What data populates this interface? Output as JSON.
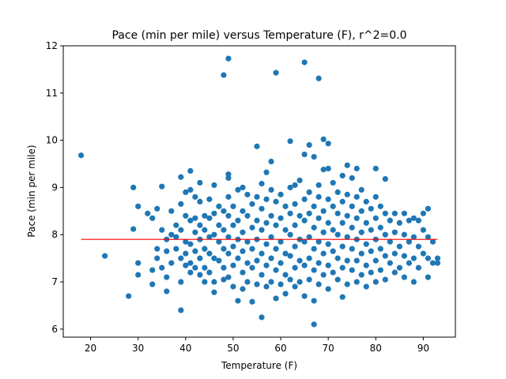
{
  "chart_data": {
    "type": "scatter",
    "title": "Pace (min per mile) versus Temperature (F), r^2=0.0",
    "xlabel": "Temperature (F)",
    "ylabel": "Pace (min per mile)",
    "xlim": [
      14.25,
      96.75
    ],
    "ylim": [
      5.83,
      12.0
    ],
    "x_ticks": [
      20,
      30,
      40,
      50,
      60,
      70,
      80,
      90
    ],
    "y_ticks": [
      6,
      7,
      8,
      9,
      10,
      11,
      12
    ],
    "grid": false,
    "point_color": "#1f77b4",
    "fit_line": {
      "color": "#ff0000",
      "x": [
        18,
        93
      ],
      "y": [
        7.9,
        7.9
      ]
    },
    "points": [
      [
        18,
        9.68
      ],
      [
        23,
        7.55
      ],
      [
        28,
        6.7
      ],
      [
        29,
        8.12
      ],
      [
        29,
        9.0
      ],
      [
        30,
        8.6
      ],
      [
        30,
        7.4
      ],
      [
        30,
        7.15
      ],
      [
        32,
        8.45
      ],
      [
        33,
        8.35
      ],
      [
        33,
        7.25
      ],
      [
        33,
        6.95
      ],
      [
        34,
        8.55
      ],
      [
        34,
        7.7
      ],
      [
        34,
        7.5
      ],
      [
        35,
        9.02
      ],
      [
        35,
        8.1
      ],
      [
        35,
        7.3
      ],
      [
        36,
        7.9
      ],
      [
        36,
        7.65
      ],
      [
        36,
        7.1
      ],
      [
        36,
        6.8
      ],
      [
        37,
        8.5
      ],
      [
        37,
        8.0
      ],
      [
        37,
        7.4
      ],
      [
        38,
        8.2
      ],
      [
        38,
        7.95
      ],
      [
        38,
        7.7
      ],
      [
        39,
        9.22
      ],
      [
        39,
        8.65
      ],
      [
        39,
        8.1
      ],
      [
        39,
        7.5
      ],
      [
        39,
        7.0
      ],
      [
        39,
        6.4
      ],
      [
        40,
        8.9
      ],
      [
        40,
        8.4
      ],
      [
        40,
        7.85
      ],
      [
        40,
        7.6
      ],
      [
        40,
        7.35
      ],
      [
        41,
        9.35
      ],
      [
        41,
        8.95
      ],
      [
        41,
        8.3
      ],
      [
        41,
        7.8
      ],
      [
        41,
        7.4
      ],
      [
        41,
        7.2
      ],
      [
        42,
        8.8
      ],
      [
        42,
        8.35
      ],
      [
        42,
        8.05
      ],
      [
        42,
        7.65
      ],
      [
        42,
        7.3
      ],
      [
        43,
        9.1
      ],
      [
        43,
        8.7
      ],
      [
        43,
        8.2
      ],
      [
        43,
        7.9
      ],
      [
        43,
        7.5
      ],
      [
        43,
        7.15
      ],
      [
        44,
        8.4
      ],
      [
        44,
        8.1
      ],
      [
        44,
        7.7
      ],
      [
        44,
        7.3
      ],
      [
        44,
        7.0
      ],
      [
        45,
        8.75
      ],
      [
        45,
        8.35
      ],
      [
        45,
        7.95
      ],
      [
        45,
        7.6
      ],
      [
        45,
        7.2
      ],
      [
        46,
        9.05
      ],
      [
        46,
        8.45
      ],
      [
        46,
        8.0
      ],
      [
        46,
        7.5
      ],
      [
        46,
        7.0
      ],
      [
        46,
        6.78
      ],
      [
        47,
        8.6
      ],
      [
        47,
        8.2
      ],
      [
        47,
        7.85
      ],
      [
        47,
        7.45
      ],
      [
        48,
        11.38
      ],
      [
        48,
        8.5
      ],
      [
        48,
        8.1
      ],
      [
        48,
        7.7
      ],
      [
        48,
        7.3
      ],
      [
        48,
        7.05
      ],
      [
        49,
        11.73
      ],
      [
        49,
        9.28
      ],
      [
        49,
        9.2
      ],
      [
        49,
        8.8
      ],
      [
        49,
        8.4
      ],
      [
        49,
        7.95
      ],
      [
        49,
        7.6
      ],
      [
        49,
        7.1
      ],
      [
        50,
        8.6
      ],
      [
        50,
        8.2
      ],
      [
        50,
        7.75
      ],
      [
        50,
        7.35
      ],
      [
        50,
        6.9
      ],
      [
        51,
        8.95
      ],
      [
        51,
        8.3
      ],
      [
        51,
        7.9
      ],
      [
        51,
        7.5
      ],
      [
        51,
        6.6
      ],
      [
        52,
        9.0
      ],
      [
        52,
        8.5
      ],
      [
        52,
        8.05
      ],
      [
        52,
        7.65
      ],
      [
        52,
        7.2
      ],
      [
        52,
        6.85
      ],
      [
        53,
        8.85
      ],
      [
        53,
        8.4
      ],
      [
        53,
        7.85
      ],
      [
        53,
        7.4
      ],
      [
        53,
        7.0
      ],
      [
        54,
        8.65
      ],
      [
        54,
        8.15
      ],
      [
        54,
        7.7
      ],
      [
        54,
        7.3
      ],
      [
        54,
        6.58
      ],
      [
        55,
        9.87
      ],
      [
        55,
        8.8
      ],
      [
        55,
        8.3
      ],
      [
        55,
        7.9
      ],
      [
        55,
        7.45
      ],
      [
        55,
        6.95
      ],
      [
        56,
        9.08
      ],
      [
        56,
        8.55
      ],
      [
        56,
        8.1
      ],
      [
        56,
        7.6
      ],
      [
        56,
        7.15
      ],
      [
        56,
        6.25
      ],
      [
        57,
        9.32
      ],
      [
        57,
        8.75
      ],
      [
        57,
        8.25
      ],
      [
        57,
        7.8
      ],
      [
        57,
        7.35
      ],
      [
        57,
        6.9
      ],
      [
        58,
        9.55
      ],
      [
        58,
        8.95
      ],
      [
        58,
        8.4
      ],
      [
        58,
        7.95
      ],
      [
        58,
        7.5
      ],
      [
        58,
        7.0
      ],
      [
        59,
        11.43
      ],
      [
        59,
        8.7
      ],
      [
        59,
        8.2
      ],
      [
        59,
        7.7
      ],
      [
        59,
        7.25
      ],
      [
        59,
        6.65
      ],
      [
        60,
        8.85
      ],
      [
        60,
        8.35
      ],
      [
        60,
        7.85
      ],
      [
        60,
        7.4
      ],
      [
        60,
        6.95
      ],
      [
        61,
        8.6
      ],
      [
        61,
        8.1
      ],
      [
        61,
        7.6
      ],
      [
        61,
        7.15
      ],
      [
        61,
        6.75
      ],
      [
        62,
        9.98
      ],
      [
        62,
        9.0
      ],
      [
        62,
        8.45
      ],
      [
        62,
        8.0
      ],
      [
        62,
        7.55
      ],
      [
        62,
        7.05
      ],
      [
        63,
        9.05
      ],
      [
        63,
        8.65
      ],
      [
        63,
        8.2
      ],
      [
        63,
        7.75
      ],
      [
        63,
        7.3
      ],
      [
        63,
        6.9
      ],
      [
        64,
        9.15
      ],
      [
        64,
        8.4
      ],
      [
        64,
        7.9
      ],
      [
        64,
        7.45
      ],
      [
        64,
        7.0
      ],
      [
        65,
        11.65
      ],
      [
        65,
        9.7
      ],
      [
        65,
        8.75
      ],
      [
        65,
        8.3
      ],
      [
        65,
        7.85
      ],
      [
        65,
        7.35
      ],
      [
        65,
        6.7
      ],
      [
        66,
        9.9
      ],
      [
        66,
        8.9
      ],
      [
        66,
        8.45
      ],
      [
        66,
        7.95
      ],
      [
        66,
        7.5
      ],
      [
        66,
        7.05
      ],
      [
        67,
        9.65
      ],
      [
        67,
        8.6
      ],
      [
        67,
        8.15
      ],
      [
        67,
        7.7
      ],
      [
        67,
        7.25
      ],
      [
        67,
        6.6
      ],
      [
        67,
        6.1
      ],
      [
        68,
        11.31
      ],
      [
        68,
        9.05
      ],
      [
        68,
        8.8
      ],
      [
        68,
        8.35
      ],
      [
        68,
        7.85
      ],
      [
        68,
        7.4
      ],
      [
        68,
        6.95
      ],
      [
        69,
        10.02
      ],
      [
        69,
        9.38
      ],
      [
        69,
        8.5
      ],
      [
        69,
        8.05
      ],
      [
        69,
        7.6
      ],
      [
        69,
        7.15
      ],
      [
        70,
        9.93
      ],
      [
        70,
        9.4
      ],
      [
        70,
        8.75
      ],
      [
        70,
        8.25
      ],
      [
        70,
        7.8
      ],
      [
        70,
        7.35
      ],
      [
        70,
        6.85
      ],
      [
        71,
        9.1
      ],
      [
        71,
        8.6
      ],
      [
        71,
        8.1
      ],
      [
        71,
        7.65
      ],
      [
        71,
        7.2
      ],
      [
        72,
        8.9
      ],
      [
        72,
        8.45
      ],
      [
        72,
        8.0
      ],
      [
        72,
        7.5
      ],
      [
        72,
        7.05
      ],
      [
        73,
        9.25
      ],
      [
        73,
        8.7
      ],
      [
        73,
        8.25
      ],
      [
        73,
        7.75
      ],
      [
        73,
        7.3
      ],
      [
        73,
        6.68
      ],
      [
        74,
        9.47
      ],
      [
        74,
        8.85
      ],
      [
        74,
        8.4
      ],
      [
        74,
        7.95
      ],
      [
        74,
        7.45
      ],
      [
        74,
        6.95
      ],
      [
        75,
        9.2
      ],
      [
        75,
        8.6
      ],
      [
        75,
        8.15
      ],
      [
        75,
        7.7
      ],
      [
        75,
        7.25
      ],
      [
        76,
        9.4
      ],
      [
        76,
        8.8
      ],
      [
        76,
        8.35
      ],
      [
        76,
        7.9
      ],
      [
        76,
        7.45
      ],
      [
        76,
        7.0
      ],
      [
        77,
        8.95
      ],
      [
        77,
        8.5
      ],
      [
        77,
        8.05
      ],
      [
        77,
        7.6
      ],
      [
        77,
        7.15
      ],
      [
        78,
        8.7
      ],
      [
        78,
        8.25
      ],
      [
        78,
        7.8
      ],
      [
        78,
        7.35
      ],
      [
        78,
        6.9
      ],
      [
        79,
        8.55
      ],
      [
        79,
        8.1
      ],
      [
        79,
        7.65
      ],
      [
        79,
        7.2
      ],
      [
        80,
        9.4
      ],
      [
        80,
        8.8
      ],
      [
        80,
        8.35
      ],
      [
        80,
        7.9
      ],
      [
        80,
        7.45
      ],
      [
        80,
        7.0
      ],
      [
        81,
        8.6
      ],
      [
        81,
        8.15
      ],
      [
        81,
        7.7
      ],
      [
        81,
        7.25
      ],
      [
        82,
        9.18
      ],
      [
        82,
        8.45
      ],
      [
        82,
        8.0
      ],
      [
        82,
        7.55
      ],
      [
        82,
        7.05
      ],
      [
        83,
        8.3
      ],
      [
        83,
        7.85
      ],
      [
        83,
        7.4
      ],
      [
        84,
        8.45
      ],
      [
        84,
        8.05
      ],
      [
        84,
        7.6
      ],
      [
        84,
        7.2
      ],
      [
        85,
        8.25
      ],
      [
        85,
        7.75
      ],
      [
        85,
        7.3
      ],
      [
        86,
        8.45
      ],
      [
        86,
        8.0
      ],
      [
        86,
        7.55
      ],
      [
        86,
        7.1
      ],
      [
        87,
        8.3
      ],
      [
        87,
        7.85
      ],
      [
        87,
        7.4
      ],
      [
        88,
        8.35
      ],
      [
        88,
        7.95
      ],
      [
        88,
        7.5
      ],
      [
        88,
        7.0
      ],
      [
        89,
        8.3
      ],
      [
        89,
        7.75
      ],
      [
        89,
        7.3
      ],
      [
        90,
        8.45
      ],
      [
        90,
        8.1
      ],
      [
        90,
        7.6
      ],
      [
        91,
        8.55
      ],
      [
        91,
        7.95
      ],
      [
        91,
        7.5
      ],
      [
        91,
        7.1
      ],
      [
        92,
        7.85
      ],
      [
        92,
        7.4
      ],
      [
        93,
        7.5
      ],
      [
        93,
        7.4
      ]
    ]
  }
}
